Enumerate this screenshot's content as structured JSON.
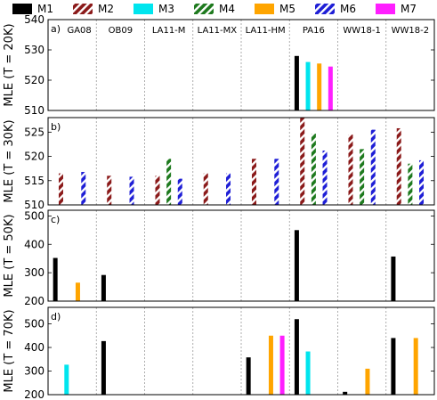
{
  "chart_data": {
    "type": "bar",
    "legend": {
      "position": "top",
      "entries": [
        {
          "name": "M1",
          "color": "#000000",
          "pattern": "solid"
        },
        {
          "name": "M2",
          "color": "#8b1a1a",
          "pattern": "hatch"
        },
        {
          "name": "M3",
          "color": "#00e5ee",
          "pattern": "solid"
        },
        {
          "name": "M4",
          "color": "#1e7a1e",
          "pattern": "hatch"
        },
        {
          "name": "M5",
          "color": "#ffa500",
          "pattern": "solid"
        },
        {
          "name": "M6",
          "color": "#1f1fd6",
          "pattern": "hatch"
        },
        {
          "name": "M7",
          "color": "#ff1fff",
          "pattern": "solid"
        }
      ]
    },
    "categories": [
      "GA08",
      "OB09",
      "LA11-M",
      "LA11-MX",
      "LA11-HM",
      "PA16",
      "WW18-1",
      "WW18-2"
    ],
    "panels": [
      {
        "label": "a)",
        "ylabel": "MLE (T = 20K)",
        "ylim": [
          510,
          540
        ],
        "yticks": [
          510,
          520,
          530,
          540
        ],
        "show_category_labels": true,
        "values": {
          "M1": [
            null,
            null,
            null,
            null,
            null,
            528,
            null,
            null
          ],
          "M2": [
            null,
            null,
            null,
            null,
            null,
            null,
            null,
            null
          ],
          "M3": [
            null,
            null,
            null,
            null,
            null,
            526,
            null,
            null
          ],
          "M4": [
            null,
            null,
            null,
            null,
            null,
            null,
            null,
            null
          ],
          "M5": [
            null,
            null,
            null,
            null,
            null,
            525.5,
            null,
            null
          ],
          "M6": [
            null,
            null,
            null,
            null,
            null,
            null,
            null,
            null
          ],
          "M7": [
            null,
            null,
            null,
            null,
            null,
            524.5,
            null,
            null
          ]
        }
      },
      {
        "label": "b)",
        "ylabel": "MLE (T = 30K)",
        "ylim": [
          510,
          528
        ],
        "yticks": [
          510,
          515,
          520,
          525
        ],
        "show_category_labels": false,
        "values": {
          "M1": [
            null,
            null,
            null,
            null,
            null,
            null,
            null,
            null
          ],
          "M2": [
            516.5,
            516,
            516,
            516.5,
            519.5,
            528,
            524.5,
            525.8
          ],
          "M3": [
            null,
            null,
            null,
            null,
            null,
            null,
            null,
            null
          ],
          "M4": [
            null,
            null,
            519.5,
            null,
            null,
            524.7,
            521.5,
            518.5
          ],
          "M5": [
            null,
            null,
            null,
            null,
            null,
            null,
            null,
            null
          ],
          "M6": [
            516.8,
            515.8,
            515.4,
            516.5,
            519.5,
            521.2,
            525.5,
            519.2
          ],
          "M7": [
            null,
            null,
            null,
            null,
            null,
            null,
            null,
            null
          ]
        }
      },
      {
        "label": "c)",
        "ylabel": "MLE (T = 50K)",
        "ylim": [
          200,
          520
        ],
        "yticks": [
          200,
          300,
          400,
          500
        ],
        "show_category_labels": false,
        "values": {
          "M1": [
            352,
            292,
            null,
            null,
            null,
            450,
            null,
            357
          ],
          "M2": [
            null,
            null,
            null,
            null,
            null,
            null,
            null,
            null
          ],
          "M3": [
            null,
            null,
            null,
            null,
            null,
            null,
            null,
            null
          ],
          "M4": [
            null,
            null,
            null,
            null,
            null,
            null,
            null,
            null
          ],
          "M5": [
            265,
            null,
            null,
            null,
            null,
            null,
            null,
            null
          ],
          "M6": [
            null,
            null,
            null,
            null,
            null,
            null,
            null,
            null
          ],
          "M7": [
            null,
            null,
            null,
            null,
            null,
            null,
            null,
            null
          ]
        }
      },
      {
        "label": "d)",
        "ylabel": "MLE (T = 70K)",
        "ylim": [
          200,
          570
        ],
        "yticks": [
          200,
          300,
          400,
          500
        ],
        "show_category_labels": false,
        "values": {
          "M1": [
            null,
            427,
            null,
            null,
            358,
            520,
            212,
            440
          ],
          "M2": [
            null,
            null,
            null,
            null,
            null,
            null,
            null,
            null
          ],
          "M3": [
            327,
            null,
            null,
            null,
            null,
            383,
            null,
            null
          ],
          "M4": [
            null,
            null,
            null,
            null,
            null,
            null,
            null,
            null
          ],
          "M5": [
            null,
            null,
            null,
            null,
            450,
            null,
            310,
            440
          ],
          "M6": [
            null,
            null,
            null,
            null,
            null,
            null,
            null,
            null
          ],
          "M7": [
            null,
            null,
            null,
            null,
            450,
            null,
            null,
            null
          ]
        }
      }
    ]
  }
}
